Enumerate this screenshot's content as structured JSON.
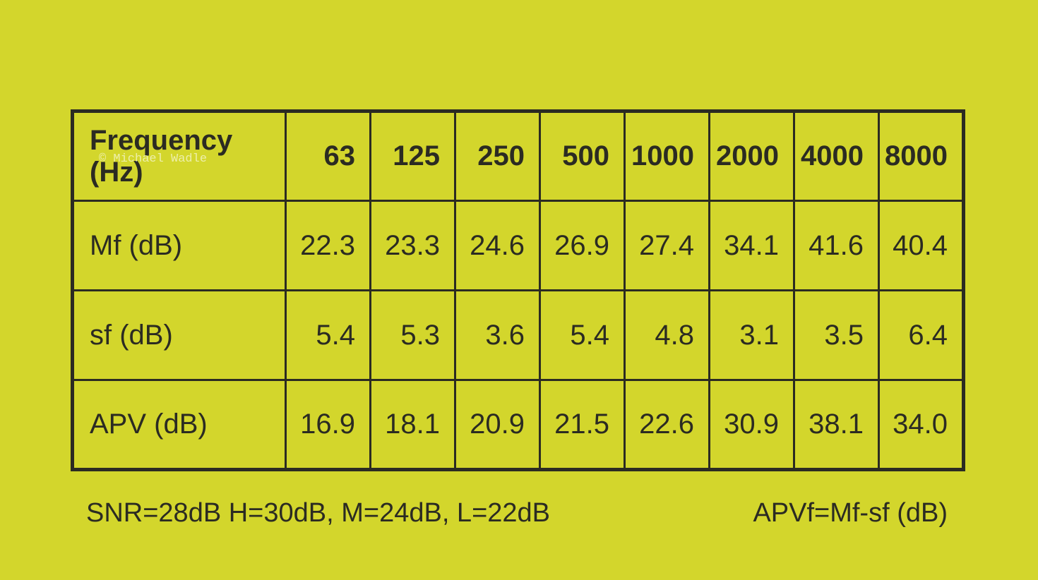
{
  "watermark": "© Michael Wadle",
  "table": {
    "header": [
      "Frequency (Hz)",
      "63",
      "125",
      "250",
      "500",
      "1000",
      "2000",
      "4000",
      "8000"
    ],
    "rows": [
      [
        "Mf (dB)",
        "22.3",
        "23.3",
        "24.6",
        "26.9",
        "27.4",
        "34.1",
        "41.6",
        "40.4"
      ],
      [
        "sf (dB)",
        "5.4",
        "5.3",
        "3.6",
        "5.4",
        "4.8",
        "3.1",
        "3.5",
        "6.4"
      ],
      [
        "APV (dB)",
        "16.9",
        "18.1",
        "20.9",
        "21.5",
        "22.6",
        "30.9",
        "38.1",
        "34.0"
      ]
    ]
  },
  "footer": {
    "left": "SNR=28dB H=30dB, M=24dB, L=22dB",
    "right": "APVf=Mf-sf (dB)"
  }
}
